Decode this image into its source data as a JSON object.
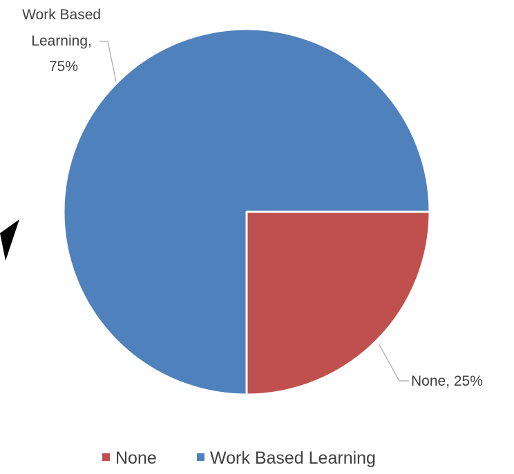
{
  "chart_data": {
    "type": "pie",
    "title": "",
    "categories": [
      "None",
      "Work Based Learning"
    ],
    "values": [
      25,
      75
    ],
    "data_labels": [
      {
        "category": "None",
        "value": "25%"
      },
      {
        "category": "Work Based Learning",
        "value": "75%"
      }
    ],
    "legend": {
      "placement": "bottom",
      "entries": [
        "None",
        "Work Based Learning"
      ]
    },
    "colors": {
      "None": "#C0504D",
      "Work Based Learning": "#4F81BD"
    },
    "slice_separator_color": "#ffffff",
    "leader_line_color": "#A6A6A6"
  }
}
